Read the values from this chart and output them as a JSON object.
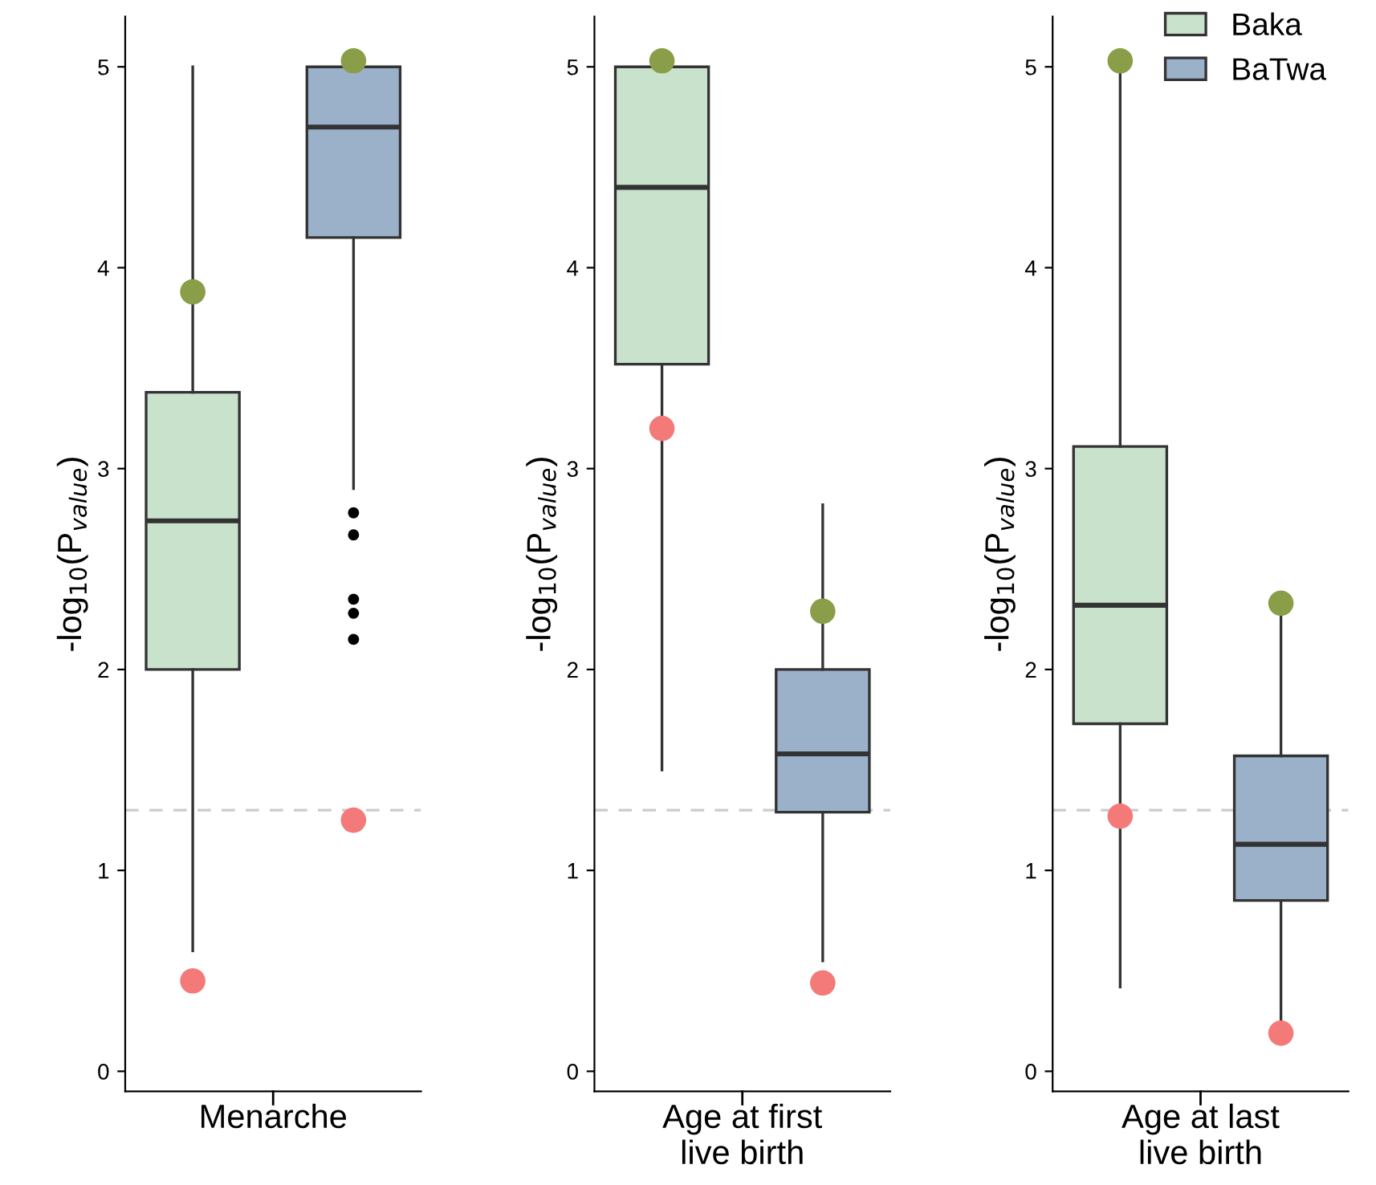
{
  "chart_data": [
    {
      "type": "box",
      "categories": [
        null,
        null
      ],
      "xlabel": "Menarche",
      "ylabel": "-log$_{10}$(P$_{value}$)",
      "ylim": [
        -0.1,
        5.25
      ],
      "yticks": [
        0,
        1,
        2,
        3,
        4,
        5
      ],
      "grid": false,
      "legend": false,
      "ref_lines": [
        {
          "axis": "y",
          "value": 1.3,
          "color": "#cccccc",
          "line_style": "dashed"
        }
      ],
      "series": [
        {
          "color": "#c9e2cb",
          "boxes": [
            {
              "low": 0.6,
              "q1": 2.0,
              "median": 2.74,
              "q3": 3.38,
              "high": 5.0
            },
            null
          ]
        },
        {
          "color": "#9bb0c9",
          "boxes": [
            null,
            {
              "low": 2.9,
              "q1": 4.15,
              "median": 4.7,
              "q3": 5.0,
              "high": 5.0,
              "outliers": [
                2.78,
                2.67,
                2.35,
                2.28,
                2.15
              ]
            }
          ]
        },
        {
          "type": "scatter",
          "color": "#8a9e4a",
          "values": [
            3.88,
            5.03
          ]
        },
        {
          "type": "scatter",
          "color": "#f47a7a",
          "values": [
            0.45,
            1.25
          ]
        }
      ]
    },
    {
      "type": "box",
      "categories": [
        null,
        null
      ],
      "xlabel": "Age at first\nlive birth",
      "ylabel": "-log$_{10}$(P$_{value}$)",
      "ylim": [
        -0.1,
        5.25
      ],
      "yticks": [
        0,
        1,
        2,
        3,
        4,
        5
      ],
      "grid": false,
      "legend": false,
      "ref_lines": [
        {
          "axis": "y",
          "value": 1.3,
          "color": "#cccccc",
          "line_style": "dashed"
        }
      ],
      "series": [
        {
          "color": "#c9e2cb",
          "boxes": [
            {
              "low": 1.5,
              "q1": 3.52,
              "median": 4.4,
              "q3": 5.0,
              "high": 5.0
            },
            null
          ]
        },
        {
          "color": "#9bb0c9",
          "boxes": [
            null,
            {
              "low": 0.55,
              "q1": 1.29,
              "median": 1.58,
              "q3": 2.0,
              "high": 2.82
            }
          ]
        },
        {
          "type": "scatter",
          "color": "#8a9e4a",
          "values": [
            5.03,
            2.29
          ]
        },
        {
          "type": "scatter",
          "color": "#f47a7a",
          "values": [
            3.2,
            0.44
          ]
        }
      ]
    },
    {
      "type": "box",
      "categories": [
        null,
        null
      ],
      "xlabel": "Age at last\nlive birth",
      "ylabel": "-log$_{10}$(P$_{value}$)",
      "ylim": [
        -0.1,
        5.25
      ],
      "yticks": [
        0,
        1,
        2,
        3,
        4,
        5
      ],
      "grid": false,
      "legend": "top right",
      "ref_lines": [
        {
          "axis": "y",
          "value": 1.3,
          "color": "#cccccc",
          "line_style": "dashed"
        }
      ],
      "series": [
        {
          "name": "Baka",
          "color": "#c9e2cb",
          "boxes": [
            {
              "low": 0.42,
              "q1": 1.73,
              "median": 2.32,
              "q3": 3.11,
              "high": 5.03
            },
            null
          ]
        },
        {
          "name": "BaTwa",
          "color": "#9bb0c9",
          "boxes": [
            null,
            {
              "low": 0.25,
              "q1": 0.85,
              "median": 1.13,
              "q3": 1.57,
              "high": 2.32
            }
          ]
        },
        {
          "type": "scatter",
          "color": "#8a9e4a",
          "values": [
            5.03,
            2.33
          ]
        },
        {
          "type": "scatter",
          "color": "#f47a7a",
          "values": [
            1.27,
            0.19
          ]
        }
      ]
    }
  ]
}
